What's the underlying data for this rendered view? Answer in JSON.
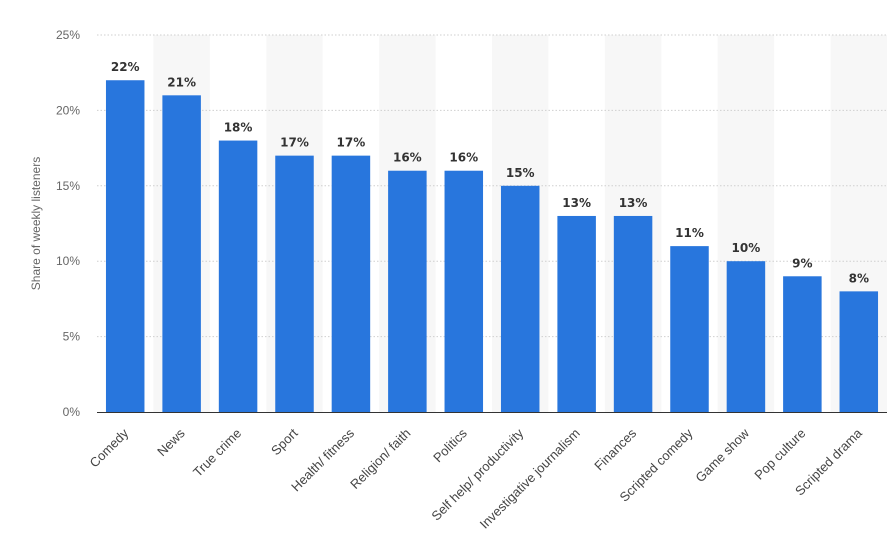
{
  "chart_data": {
    "type": "bar",
    "title": "",
    "xlabel": "",
    "ylabel": "Share of weekly listeners",
    "categories": [
      "Comedy",
      "News",
      "True crime",
      "Sport",
      "Health/ fitness",
      "Religion/ faith",
      "Politics",
      "Self help/ productivity",
      "Investigative journalism",
      "Finances",
      "Scripted comedy",
      "Game show",
      "Pop culture",
      "Scripted drama"
    ],
    "values": [
      22,
      21,
      18,
      17,
      17,
      16,
      16,
      15,
      13,
      13,
      11,
      10,
      9,
      8
    ],
    "data_labels": [
      "22%",
      "21%",
      "18%",
      "17%",
      "17%",
      "16%",
      "16%",
      "15%",
      "13%",
      "13%",
      "11%",
      "10%",
      "9%",
      "8%"
    ],
    "ylim": [
      0,
      25
    ],
    "yticks": [
      0,
      5,
      10,
      15,
      20,
      25
    ],
    "ytick_labels": [
      "0%",
      "5%",
      "10%",
      "15%",
      "20%",
      "25%"
    ],
    "grid": true,
    "legend": "none",
    "colors": {
      "bar": "#2876dd",
      "band": "#f7f7f7",
      "grid": "#cfcfcf",
      "axis": "#333333"
    }
  }
}
